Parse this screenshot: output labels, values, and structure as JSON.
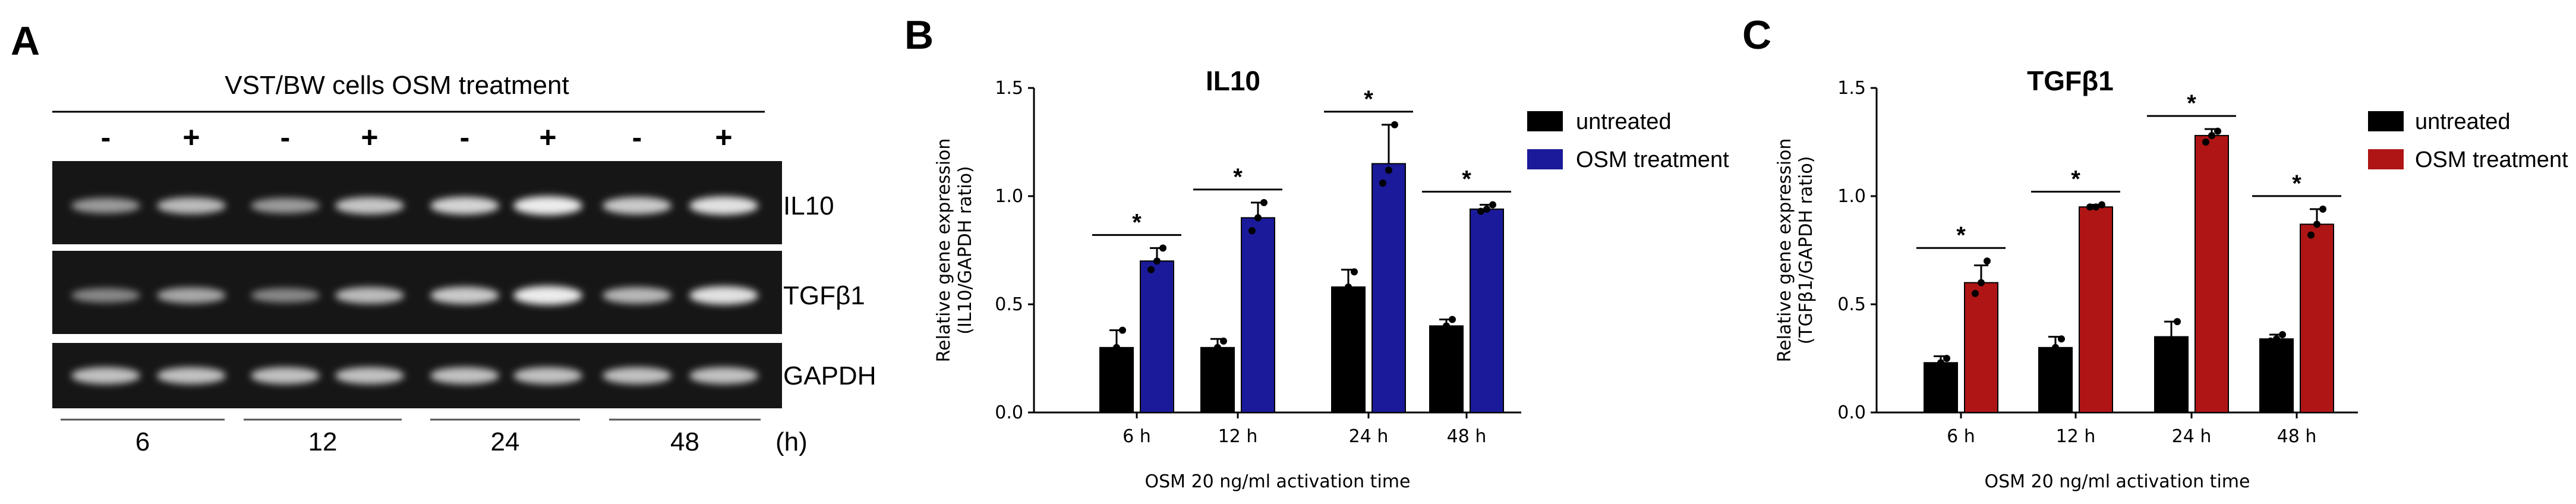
{
  "panel_labels": {
    "a": "A",
    "b": "B",
    "c": "C"
  },
  "gel": {
    "header": "VST/BW cells OSM treatment",
    "lane_signs": [
      "-",
      "+",
      "-",
      "+",
      "-",
      "+",
      "-",
      "+"
    ],
    "bands": [
      "IL10",
      "TGFβ1",
      "GAPDH"
    ],
    "timepoints": [
      "6",
      "12",
      "24",
      "48"
    ],
    "unit": "(h)",
    "intensities": {
      "IL10": [
        0.55,
        0.72,
        0.55,
        0.78,
        0.85,
        0.98,
        0.8,
        0.92
      ],
      "TGFβ1": [
        0.45,
        0.62,
        0.45,
        0.72,
        0.8,
        0.98,
        0.7,
        0.92
      ],
      "GAPDH": [
        0.75,
        0.75,
        0.75,
        0.75,
        0.75,
        0.75,
        0.75,
        0.75
      ]
    }
  },
  "legend": {
    "untreated": "untreated",
    "treated": "OSM treatment"
  },
  "colors": {
    "untreated": "#000000",
    "il10": "#1a1a9a",
    "tgfb1": "#b01515"
  },
  "chart_data": [
    {
      "id": "B",
      "type": "bar",
      "title": "IL10",
      "xlabel": "OSM 20 ng/ml activation time",
      "ylabel_line1": "Relative gene expression",
      "ylabel_line2": "(IL10/GAPDH ratio)",
      "ylim": [
        0,
        1.5
      ],
      "yticks": [
        "0.0",
        "0.5",
        "1.0",
        "1.5"
      ],
      "categories": [
        "6 h",
        "12 h",
        "24 h",
        "48 h"
      ],
      "series": [
        {
          "name": "untreated",
          "values": [
            0.3,
            0.3,
            0.58,
            0.4
          ],
          "errors": [
            0.08,
            0.04,
            0.08,
            0.03
          ],
          "points": [
            [
              0.24,
              0.3,
              0.38
            ],
            [
              0.27,
              0.3,
              0.33
            ],
            [
              0.52,
              0.58,
              0.65
            ],
            [
              0.38,
              0.4,
              0.43
            ]
          ]
        },
        {
          "name": "OSM treatment",
          "values": [
            0.7,
            0.9,
            1.15,
            0.94
          ],
          "errors": [
            0.06,
            0.07,
            0.18,
            0.02
          ],
          "points": [
            [
              0.66,
              0.7,
              0.76
            ],
            [
              0.84,
              0.9,
              0.97
            ],
            [
              1.06,
              1.12,
              1.33
            ],
            [
              0.93,
              0.94,
              0.96
            ]
          ]
        }
      ],
      "significance": [
        "*",
        "*",
        "*",
        "*"
      ]
    },
    {
      "id": "C",
      "type": "bar",
      "title": "TGFβ1",
      "xlabel": "OSM 20 ng/ml activation time",
      "ylabel_line1": "Relative gene expression",
      "ylabel_line2": "(TGFβ1/GAPDH ratio)",
      "ylim": [
        0,
        1.5
      ],
      "yticks": [
        "0.0",
        "0.5",
        "1.0",
        "1.5"
      ],
      "categories": [
        "6 h",
        "12 h",
        "24 h",
        "48 h"
      ],
      "series": [
        {
          "name": "untreated",
          "values": [
            0.23,
            0.3,
            0.35,
            0.34
          ],
          "errors": [
            0.03,
            0.05,
            0.07,
            0.02
          ],
          "points": [
            [
              0.21,
              0.23,
              0.25
            ],
            [
              0.27,
              0.3,
              0.34
            ],
            [
              0.3,
              0.33,
              0.42
            ],
            [
              0.33,
              0.34,
              0.36
            ]
          ]
        },
        {
          "name": "OSM treatment",
          "values": [
            0.6,
            0.95,
            1.28,
            0.87
          ],
          "errors": [
            0.08,
            0.01,
            0.03,
            0.07
          ],
          "points": [
            [
              0.55,
              0.6,
              0.7
            ],
            [
              0.95,
              0.95,
              0.96
            ],
            [
              1.25,
              1.28,
              1.3
            ],
            [
              0.82,
              0.87,
              0.94
            ]
          ]
        }
      ],
      "significance": [
        "*",
        "*",
        "*",
        "*"
      ]
    }
  ]
}
